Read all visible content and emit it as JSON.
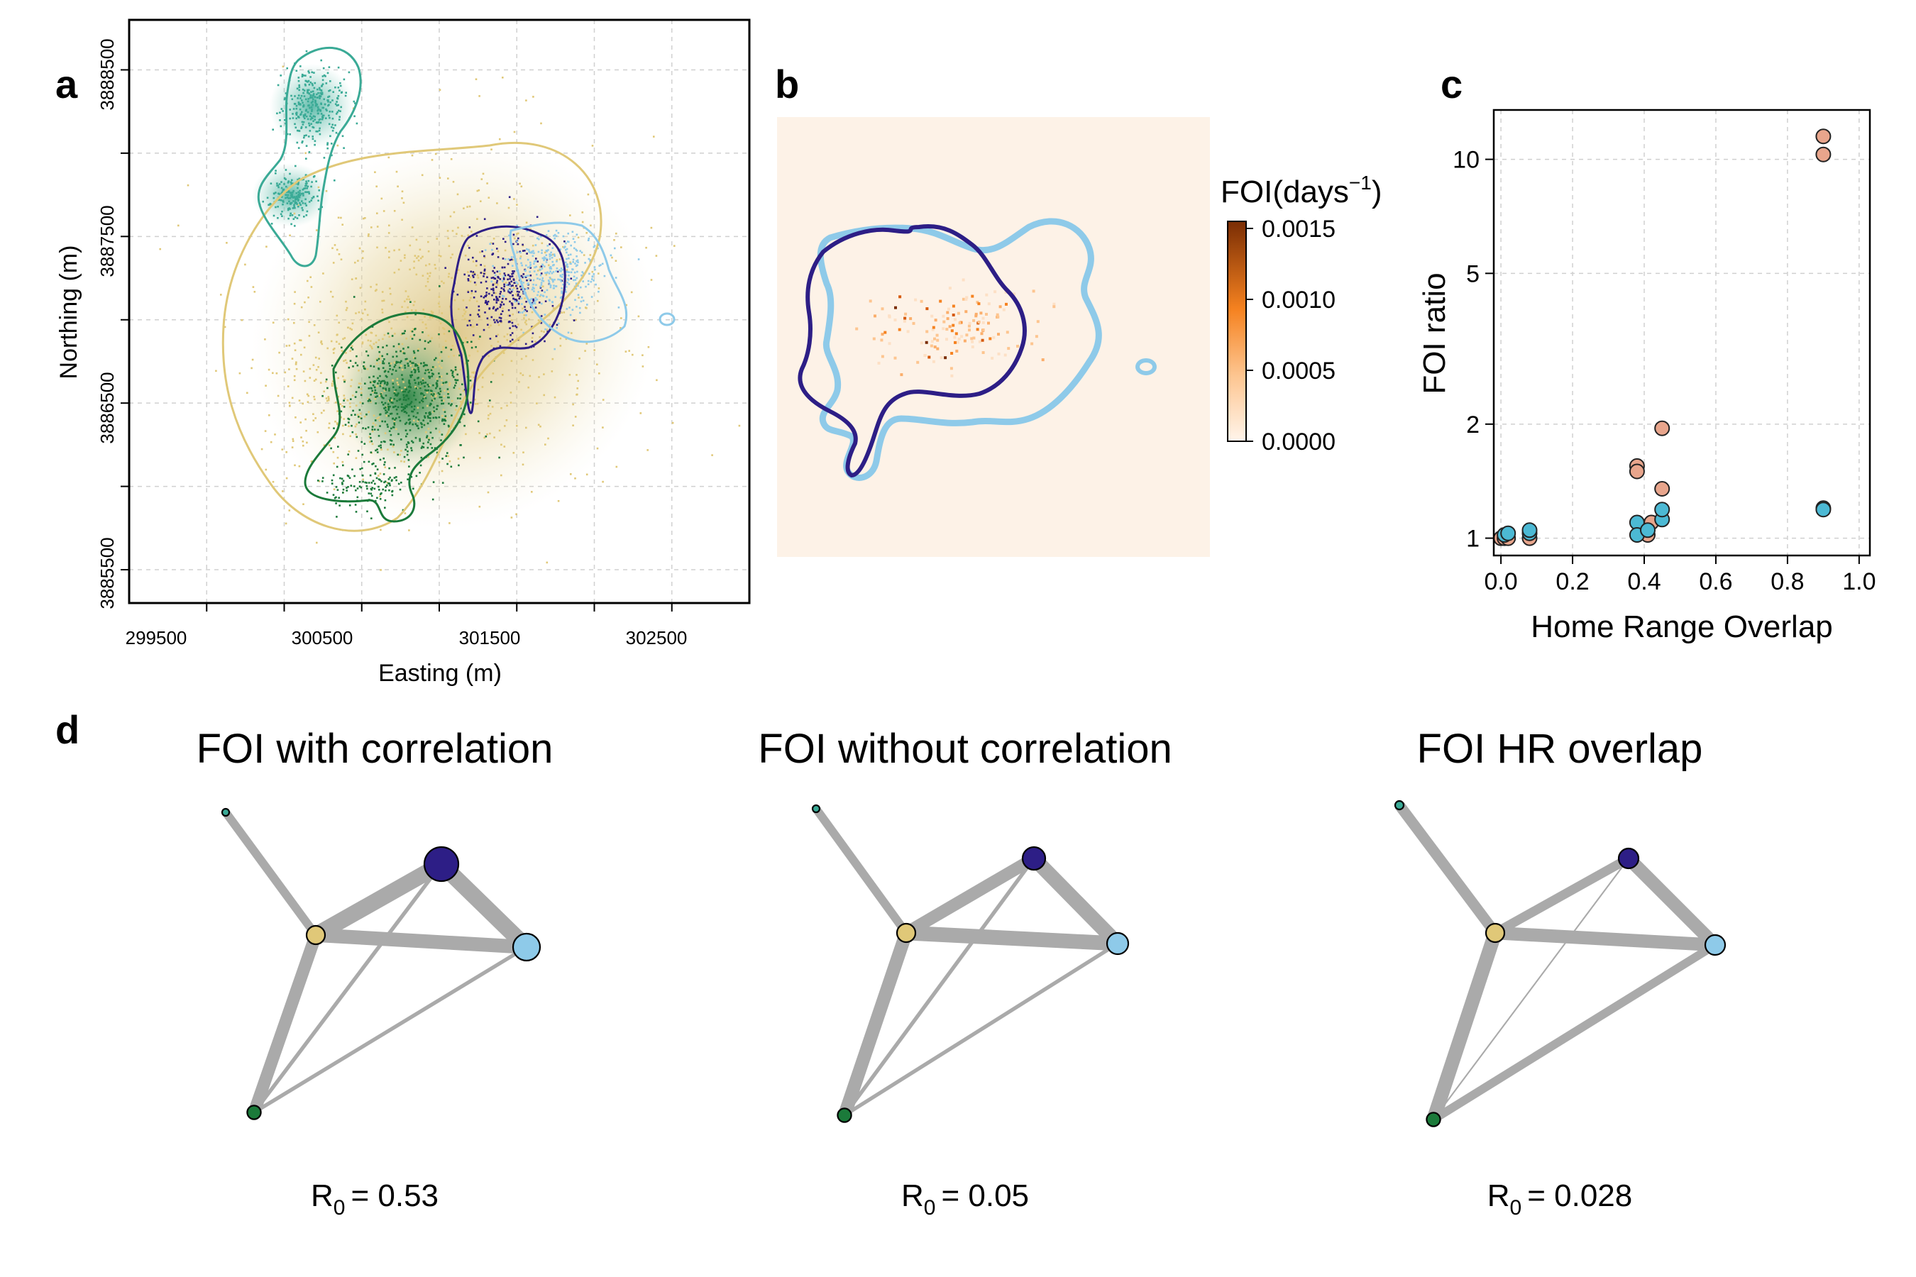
{
  "panels": {
    "a": {
      "label": "a",
      "xlabel": "Easting (m)",
      "ylabel": "Northing (m)",
      "xticks": [
        "299500",
        "300500",
        "301500",
        "302500"
      ],
      "yticks": [
        "3885500",
        "3886500",
        "3887500",
        "3888500"
      ]
    },
    "b": {
      "label": "b",
      "legend_title": "FOI(days",
      "legend_title_sup": "−1",
      "legend_title_close": ")",
      "legend_ticks": [
        "0.0015",
        "0.0010",
        "0.0005",
        "0.0000"
      ]
    },
    "c": {
      "label": "c",
      "xlabel": "Home Range Overlap",
      "ylabel": "FOI ratio",
      "xticks": [
        "0.0",
        "0.2",
        "0.4",
        "0.6",
        "0.8",
        "1.0"
      ],
      "yticks": [
        "1",
        "2",
        "5",
        "10"
      ]
    },
    "d": {
      "label": "d",
      "networks": [
        {
          "title": "FOI with correlation",
          "r0_label": "R",
          "r0_sub": "0",
          "r0_value": "= 0.53"
        },
        {
          "title": "FOI without correlation",
          "r0_label": "R",
          "r0_sub": "0",
          "r0_value": "= 0.05"
        },
        {
          "title": "FOI HR overlap",
          "r0_label": "R",
          "r0_sub": "0",
          "r0_value": "= 0.028"
        }
      ]
    }
  },
  "colors": {
    "teal": "#3aaa96",
    "gold": "#e0c878",
    "green": "#1b7a3a",
    "purple": "#2d1e86",
    "lightblue": "#8ecae9",
    "salmon": "#e8a58c",
    "cyan": "#4cb9d4",
    "edge": "#aaaaaa",
    "foi_dark": "#7a2d04"
  },
  "chart_data": [
    {
      "panel": "a",
      "type": "scatter",
      "title": "",
      "xlabel": "Easting (m)",
      "ylabel": "Northing (m)",
      "xlim": [
        299000,
        303000
      ],
      "ylim": [
        3885300,
        3888800
      ],
      "grid": true,
      "series": [
        {
          "color": "#3aaa96",
          "center": [
            300500,
            3888050
          ]
        },
        {
          "color": "#e0c878",
          "center": [
            301000,
            3887100
          ]
        },
        {
          "color": "#1b7a3a",
          "center": [
            300950,
            3886550
          ]
        },
        {
          "color": "#2d1e86",
          "center": [
            301600,
            3887150
          ]
        },
        {
          "color": "#8ecae9",
          "center": [
            301850,
            3887200
          ]
        }
      ]
    },
    {
      "panel": "c",
      "type": "scatter",
      "title": "",
      "xlabel": "Home Range Overlap",
      "ylabel": "FOI ratio",
      "xlim": [
        -0.02,
        1.03
      ],
      "ylim": [
        0.9,
        13.5
      ],
      "y_scale": "log",
      "grid": true,
      "series": [
        {
          "color": "#e8a58c",
          "points": [
            [
              0.0,
              1.0
            ],
            [
              0.01,
              1.0
            ],
            [
              0.02,
              1.0
            ],
            [
              0.08,
              1.0
            ],
            [
              0.38,
              1.55
            ],
            [
              0.38,
              1.5
            ],
            [
              0.4,
              1.07
            ],
            [
              0.41,
              1.02
            ],
            [
              0.42,
              1.1
            ],
            [
              0.45,
              1.35
            ],
            [
              0.45,
              1.95
            ],
            [
              0.9,
              11.5
            ],
            [
              0.9,
              10.3
            ]
          ]
        },
        {
          "color": "#4cb9d4",
          "points": [
            [
              0.01,
              1.02
            ],
            [
              0.02,
              1.03
            ],
            [
              0.08,
              1.03
            ],
            [
              0.08,
              1.05
            ],
            [
              0.38,
              1.1
            ],
            [
              0.38,
              1.02
            ],
            [
              0.41,
              1.05
            ],
            [
              0.45,
              1.12
            ],
            [
              0.45,
              1.19
            ],
            [
              0.9,
              1.2
            ],
            [
              0.9,
              1.19
            ]
          ]
        }
      ]
    },
    {
      "panel": "d",
      "type": "network",
      "networks": [
        {
          "title": "FOI with correlation",
          "r0": 0.53,
          "node_size": {
            "teal": 0.05,
            "gold": 0.45,
            "purple": 1.0,
            "lightblue": 0.75,
            "green": 0.28
          },
          "edge_weight": {
            "teal-gold": 0.5,
            "gold-purple": 1.0,
            "gold-lightblue": 0.85,
            "purple-lightblue": 1.0,
            "gold-green": 0.75,
            "purple-green": 0.2,
            "lightblue-green": 0.2
          }
        },
        {
          "title": "FOI without correlation",
          "r0": 0.05,
          "node_size": {
            "teal": 0.05,
            "gold": 0.45,
            "purple": 0.6,
            "lightblue": 0.55,
            "green": 0.28
          },
          "edge_weight": {
            "teal-gold": 0.5,
            "gold-purple": 0.75,
            "gold-lightblue": 0.9,
            "purple-lightblue": 0.9,
            "gold-green": 0.8,
            "purple-green": 0.2,
            "lightblue-green": 0.2
          }
        },
        {
          "title": "FOI HR overlap",
          "r0": 0.028,
          "node_size": {
            "teal": 0.1,
            "gold": 0.45,
            "purple": 0.5,
            "lightblue": 0.5,
            "green": 0.28
          },
          "edge_weight": {
            "teal-gold": 0.65,
            "gold-purple": 0.55,
            "gold-lightblue": 0.8,
            "purple-lightblue": 0.8,
            "gold-green": 0.85,
            "purple-green": 0.05,
            "lightblue-green": 0.5
          }
        }
      ]
    }
  ]
}
